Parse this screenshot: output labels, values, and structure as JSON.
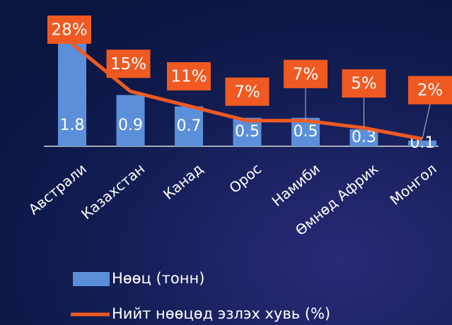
{
  "chart_data": {
    "type": "bar",
    "categories": [
      "Австрали",
      "Казахстан",
      "Канад",
      "Орос",
      "Намиби",
      "Өмнөд Африк",
      "Монгол"
    ],
    "ylim": [
      0,
      1.8
    ],
    "y2lim": [
      0,
      28
    ],
    "series": [
      {
        "name": "Нөөц (тонн)",
        "type": "bar",
        "color": "#5b8fd9",
        "values": [
          1.8,
          0.9,
          0.7,
          0.5,
          0.5,
          0.3,
          0.1
        ]
      },
      {
        "name": "Нийт нөөцөд эзлэх хувь (%)",
        "type": "line",
        "axis": "y2",
        "color": "#f05a22",
        "values": [
          28,
          15,
          11,
          7,
          7,
          5,
          2
        ],
        "value_labels": [
          "28%",
          "15%",
          "11%",
          "7%",
          "7%",
          "5%",
          "2%"
        ]
      }
    ]
  }
}
